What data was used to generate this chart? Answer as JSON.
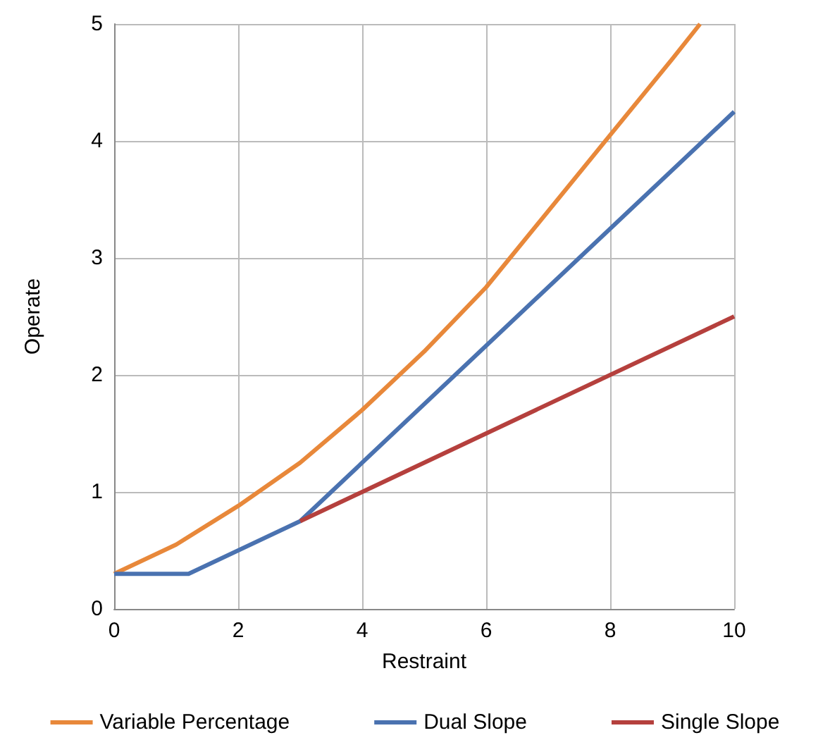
{
  "chart_data": {
    "type": "line",
    "xlabel": "Restraint",
    "ylabel": "Operate",
    "xlim": [
      0,
      10
    ],
    "xticks": [
      0,
      2,
      4,
      6,
      8,
      10
    ],
    "ylim": [
      0,
      5
    ],
    "yticks": [
      0,
      1,
      2,
      3,
      4,
      5
    ],
    "grid": true,
    "legend": "bottom",
    "marker": "none",
    "line_style": "solid",
    "series": [
      {
        "name": "Variable Percentage",
        "color": "#e8883a",
        "x": [
          0,
          1,
          2,
          3,
          4,
          5,
          6,
          7,
          8,
          9,
          9.45
        ],
        "values": [
          0.3,
          0.55,
          0.88,
          1.25,
          1.7,
          2.2,
          2.75,
          3.4,
          4.05,
          4.7,
          5
        ]
      },
      {
        "name": "Dual Slope",
        "color": "#4a72b0",
        "x": [
          0,
          1.2,
          3,
          10
        ],
        "values": [
          0.3,
          0.3,
          0.75,
          4.25
        ]
      },
      {
        "name": "Single Slope",
        "color": "#b5403d",
        "x": [
          3,
          10
        ],
        "values": [
          0.75,
          2.5
        ]
      }
    ]
  }
}
